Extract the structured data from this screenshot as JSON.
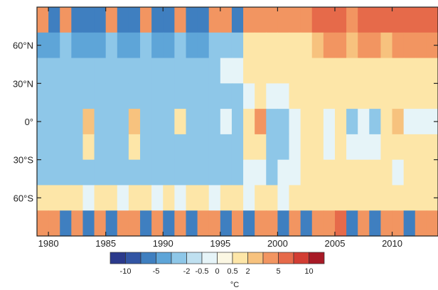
{
  "chart_data": {
    "type": "heatmap",
    "title": "",
    "xlabel": "",
    "ylabel": "",
    "xlim": [
      1979,
      2014
    ],
    "ylim": [
      -90,
      90
    ],
    "x_ticks": [
      1980,
      1985,
      1990,
      1995,
      2000,
      2005,
      2010
    ],
    "x_tick_labels": [
      "1980",
      "1985",
      "1990",
      "1995",
      "2000",
      "2005",
      "2010"
    ],
    "y_ticks": [
      60,
      30,
      0,
      -30,
      -60
    ],
    "y_tick_labels": [
      "60°N",
      "30°N",
      "0°",
      "30°S",
      "60°S"
    ],
    "years": [
      1979,
      1980,
      1981,
      1982,
      1983,
      1984,
      1985,
      1986,
      1987,
      1988,
      1989,
      1990,
      1991,
      1992,
      1993,
      1994,
      1995,
      1996,
      1997,
      1998,
      1999,
      2000,
      2001,
      2002,
      2003,
      2004,
      2005,
      2006,
      2007,
      2008,
      2009,
      2010,
      2011,
      2012,
      2013
    ],
    "latitudes": [
      80,
      60,
      40,
      20,
      0,
      -20,
      -40,
      -60,
      -80
    ],
    "values": [
      [
        2,
        -2,
        2,
        -2,
        -2,
        -2,
        2,
        -2,
        -2,
        2,
        -2,
        -2,
        2,
        -2,
        -2,
        2,
        2,
        -2,
        2,
        2,
        2,
        2,
        2,
        2,
        5,
        5,
        5,
        2,
        5,
        5,
        5,
        5,
        5,
        5,
        5
      ],
      [
        -1,
        -1,
        -0.5,
        -1,
        -1,
        -1,
        -0.5,
        -1,
        -1,
        -0.5,
        -1,
        -1,
        -0.5,
        -1,
        -1,
        -0.5,
        -0.5,
        -0.5,
        0.5,
        0.5,
        0.5,
        0.5,
        0.5,
        0.5,
        1,
        2,
        2,
        1,
        2,
        2,
        1,
        2,
        2,
        2,
        2
      ],
      [
        -0.5,
        -0.5,
        -0.5,
        -0.5,
        -0.5,
        -0.5,
        -0.5,
        -0.5,
        -0.5,
        -0.5,
        -0.5,
        -0.5,
        -0.5,
        -0.5,
        -0.5,
        -0.5,
        0,
        0,
        0.5,
        0.5,
        0.5,
        0.5,
        0.5,
        0.5,
        0.5,
        0.5,
        0.5,
        0.5,
        0.5,
        0.5,
        0.5,
        0.5,
        0.5,
        0.5,
        0.5
      ],
      [
        -0.5,
        -0.5,
        -0.5,
        -0.5,
        -0.5,
        -0.5,
        -0.5,
        -0.5,
        -0.5,
        -0.5,
        -0.5,
        -0.5,
        -0.5,
        -0.5,
        -0.5,
        -0.5,
        -0.5,
        -0.5,
        0,
        0.5,
        0,
        0,
        0.5,
        0.5,
        0.5,
        0.5,
        0.5,
        0.5,
        0.5,
        0.5,
        0.5,
        0.5,
        0.5,
        0.5,
        0.5
      ],
      [
        -0.5,
        -0.5,
        -0.5,
        -0.5,
        1,
        -0.5,
        -0.5,
        -0.5,
        1,
        -0.5,
        -0.5,
        -0.5,
        0.5,
        -0.5,
        -0.5,
        -0.5,
        0,
        -0.5,
        0.5,
        2,
        -0.5,
        -0.5,
        0,
        0.5,
        0.5,
        0,
        0.5,
        -0.5,
        0,
        -0.5,
        0.5,
        1,
        0,
        0,
        0
      ],
      [
        -0.5,
        -0.5,
        -0.5,
        -0.5,
        0.5,
        -0.5,
        -0.5,
        -0.5,
        0.5,
        -0.5,
        -0.5,
        -0.5,
        -0.5,
        -0.5,
        -0.5,
        -0.5,
        -0.5,
        -0.5,
        0.5,
        0.5,
        -0.5,
        -0.5,
        0,
        0.5,
        0.5,
        0,
        0.5,
        0,
        0,
        0,
        0.5,
        0.5,
        0.5,
        0.5,
        0.5
      ],
      [
        -0.5,
        -0.5,
        -0.5,
        -0.5,
        -0.5,
        -0.5,
        -0.5,
        -0.5,
        -0.5,
        -0.5,
        -0.5,
        -0.5,
        -0.5,
        -0.5,
        -0.5,
        -0.5,
        -0.5,
        -0.5,
        0,
        0,
        -0.5,
        0,
        0,
        0.5,
        0.5,
        0.5,
        0.5,
        0.5,
        0.5,
        0.5,
        0.5,
        0,
        0.5,
        0.5,
        0.5
      ],
      [
        0.5,
        0.5,
        0.5,
        0.5,
        0,
        0.5,
        0.5,
        0,
        0.5,
        0.5,
        0,
        0.5,
        0,
        0.5,
        0.5,
        0,
        0.5,
        0.5,
        0,
        0.5,
        0.5,
        0,
        0.5,
        0.5,
        0.5,
        0.5,
        0.5,
        0.5,
        0.5,
        0.5,
        0.5,
        0.5,
        0.5,
        0.5,
        0.5
      ],
      [
        2,
        2,
        -2,
        2,
        -2,
        2,
        -2,
        2,
        2,
        -2,
        2,
        -2,
        2,
        -2,
        2,
        2,
        -2,
        2,
        -2,
        2,
        2,
        -2,
        2,
        -2,
        2,
        2,
        5,
        -2,
        2,
        -2,
        2,
        2,
        -2,
        2,
        2
      ]
    ],
    "colorbar": {
      "label": "°C",
      "tick_labels": [
        "-10",
        "-5",
        "-2",
        "-0.5",
        "0",
        "0.5",
        "2",
        "5",
        "10"
      ],
      "colors": [
        "#2b3a8c",
        "#3255a4",
        "#3f7fc0",
        "#5ea5d8",
        "#8ec7e8",
        "#bfe0f0",
        "#e6f4f8",
        "#fbf7e3",
        "#fde6a8",
        "#f7c27e",
        "#f29561",
        "#e66a4a",
        "#d23d33",
        "#a81a26"
      ]
    }
  }
}
